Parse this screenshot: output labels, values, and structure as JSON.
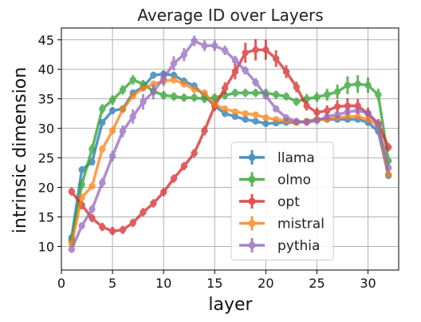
{
  "chart_data": {
    "type": "line",
    "title": "Average ID over Layers",
    "xlabel": "layer",
    "ylabel": "intrinsic dimension",
    "xlim": [
      0,
      33
    ],
    "ylim": [
      6,
      47
    ],
    "xticks": [
      0,
      5,
      10,
      15,
      20,
      25,
      30
    ],
    "yticks": [
      10,
      15,
      20,
      25,
      30,
      35,
      40,
      45
    ],
    "grid": true,
    "legend_position": "lower-right",
    "x": [
      1,
      2,
      3,
      4,
      5,
      6,
      7,
      8,
      9,
      10,
      11,
      12,
      13,
      14,
      15,
      16,
      17,
      18,
      19,
      20,
      21,
      22,
      23,
      24,
      25,
      26,
      27,
      28,
      29,
      30,
      31,
      32
    ],
    "series": [
      {
        "name": "llama",
        "color": "#1f77b4",
        "values": [
          11.5,
          23,
          24.3,
          31,
          33,
          33.3,
          36,
          37,
          39,
          39.2,
          39,
          38,
          37.2,
          35.5,
          33.8,
          32.5,
          32,
          31.5,
          31.2,
          30.8,
          30.9,
          31,
          31,
          31.2,
          31.5,
          31.5,
          31.5,
          31.5,
          31.5,
          31,
          29.5,
          22
        ],
        "errors": [
          0.6,
          0.6,
          0.6,
          0.6,
          0.6,
          0.6,
          0.6,
          0.6,
          0.6,
          0.6,
          0.6,
          0.6,
          0.6,
          0.6,
          0.6,
          0.6,
          0.5,
          0.5,
          0.5,
          0.5,
          0.5,
          0.5,
          0.5,
          0.5,
          0.5,
          0.5,
          0.5,
          0.5,
          0.5,
          0.6,
          0.6,
          0.6
        ]
      },
      {
        "name": "olmo",
        "color": "#2ca02c",
        "values": [
          11,
          20.5,
          26.5,
          33.3,
          34.8,
          36.5,
          38.2,
          37.5,
          36.3,
          35.6,
          35.4,
          35.2,
          35.2,
          35,
          35.2,
          35.6,
          36,
          36,
          36,
          36,
          35.7,
          35.4,
          34.5,
          35,
          35.3,
          35.7,
          36.2,
          37.3,
          37.5,
          37.3,
          35.7,
          24.5
        ],
        "errors": [
          0.8,
          0.8,
          0.8,
          0.8,
          0.8,
          0.8,
          0.8,
          0.7,
          0.7,
          0.7,
          0.7,
          0.7,
          0.7,
          0.7,
          0.7,
          0.7,
          0.7,
          0.7,
          0.7,
          0.7,
          0.7,
          0.7,
          0.7,
          0.8,
          0.8,
          1.0,
          1.2,
          1.5,
          1.5,
          1.3,
          1.0,
          0.8
        ]
      },
      {
        "name": "opt",
        "color": "#d62728",
        "values": [
          19.3,
          17,
          14.8,
          13.3,
          12.6,
          12.8,
          14,
          15.8,
          17.3,
          19.2,
          21.5,
          23.6,
          25.8,
          29.6,
          33.8,
          36.8,
          39.6,
          42.8,
          43.3,
          43.3,
          41.8,
          39.6,
          37,
          33.8,
          32.7,
          33,
          33.7,
          33.8,
          33.8,
          32.5,
          30.8,
          26.8
        ],
        "errors": [
          0.7,
          0.7,
          0.7,
          0.7,
          0.7,
          0.7,
          0.7,
          0.7,
          0.7,
          0.7,
          0.7,
          0.7,
          0.7,
          0.8,
          0.9,
          1.0,
          1.3,
          1.7,
          1.8,
          1.7,
          1.4,
          1.1,
          0.9,
          0.8,
          0.8,
          0.9,
          1.1,
          1.3,
          1.2,
          1.0,
          0.8,
          0.7
        ]
      },
      {
        "name": "mistral",
        "color": "#ff7f0e",
        "values": [
          10.5,
          18.3,
          20.2,
          26.5,
          29.6,
          33.2,
          35.5,
          36.8,
          37.5,
          38,
          38.2,
          37.5,
          36.6,
          36,
          34,
          33.3,
          32.8,
          32.5,
          32.3,
          31.8,
          31.5,
          31.3,
          31,
          31.2,
          31.5,
          31.5,
          31.8,
          32,
          32,
          31.5,
          30.5,
          22.2
        ],
        "errors": [
          0.6,
          0.6,
          0.6,
          0.6,
          0.6,
          0.6,
          0.6,
          0.6,
          0.6,
          0.6,
          0.6,
          0.6,
          0.6,
          0.6,
          0.6,
          0.6,
          0.5,
          0.5,
          0.5,
          0.5,
          0.5,
          0.5,
          0.5,
          0.5,
          0.5,
          0.5,
          0.5,
          0.5,
          0.5,
          0.5,
          0.6,
          0.6
        ]
      },
      {
        "name": "pythia",
        "color": "#9467bd",
        "values": [
          9.5,
          13.5,
          16.3,
          20.8,
          25.3,
          29.5,
          32,
          34.5,
          36.2,
          38.5,
          41,
          42.5,
          44.8,
          44,
          44,
          43.2,
          41.5,
          39.8,
          37.8,
          35.5,
          33.3,
          31.8,
          31.2,
          31,
          31.3,
          32,
          32.3,
          32.8,
          33,
          32.6,
          30.6,
          23.3
        ],
        "errors": [
          0.6,
          0.6,
          0.7,
          0.8,
          0.9,
          1.0,
          1.2,
          1.3,
          1.3,
          1.3,
          1.2,
          1.1,
          0.9,
          0.9,
          0.9,
          0.8,
          0.8,
          0.7,
          0.7,
          0.6,
          0.6,
          0.6,
          0.6,
          0.6,
          0.6,
          0.6,
          0.6,
          0.6,
          0.6,
          0.6,
          0.6,
          0.6
        ]
      }
    ]
  }
}
